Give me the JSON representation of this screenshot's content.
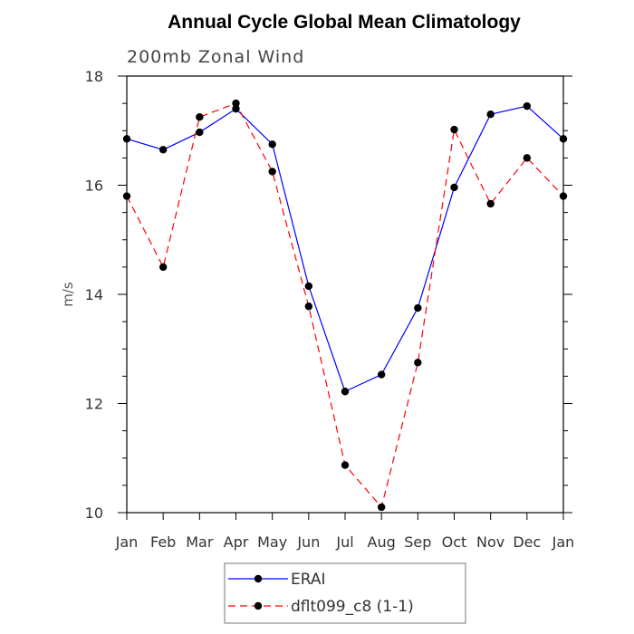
{
  "chart_data": {
    "type": "line",
    "title": "Annual Cycle Global Mean Climatology",
    "subtitle": "200mb Zonal Wind",
    "xlabel": "",
    "ylabel": "m/s",
    "categories": [
      "Jan",
      "Feb",
      "Mar",
      "Apr",
      "May",
      "Jun",
      "Jul",
      "Aug",
      "Sep",
      "Oct",
      "Nov",
      "Dec",
      "Jan"
    ],
    "ylim": [
      10,
      18
    ],
    "yticks": [
      10,
      12,
      14,
      16,
      18
    ],
    "grid": false,
    "legend_position": "bottom-center",
    "series": [
      {
        "name": "ERAI",
        "color": "#0000ff",
        "dash": "solid",
        "marker": "filled-circle",
        "values": [
          16.85,
          16.65,
          16.97,
          17.4,
          16.75,
          14.15,
          12.22,
          12.53,
          13.75,
          15.96,
          17.3,
          17.45,
          16.85
        ]
      },
      {
        "name": "dflt099_c8 (1-1)",
        "color": "#ff0000",
        "dash": "dashed",
        "marker": "filled-circle",
        "values": [
          15.8,
          14.5,
          17.25,
          17.5,
          16.25,
          13.78,
          10.87,
          10.1,
          12.75,
          17.02,
          15.66,
          16.5,
          15.8
        ]
      }
    ]
  }
}
